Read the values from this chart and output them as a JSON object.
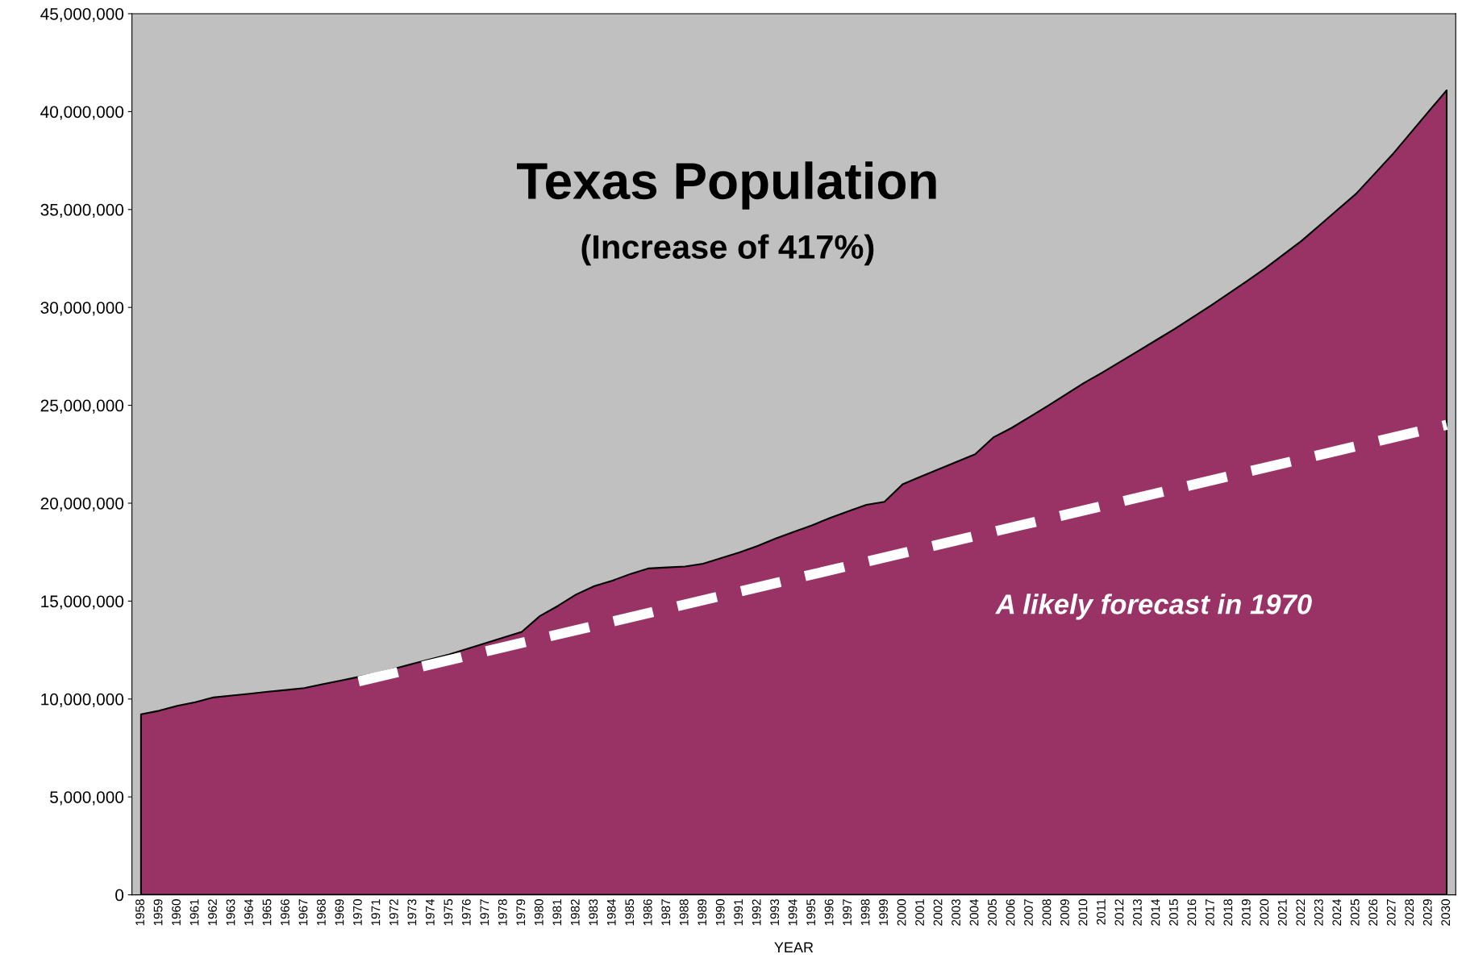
{
  "chart_data": {
    "type": "area",
    "title": "Texas Population",
    "subtitle": "(Increase of 417%)",
    "xlabel": "YEAR",
    "categories": [
      "1958",
      "1959",
      "1960",
      "1961",
      "1962",
      "1963",
      "1964",
      "1965",
      "1966",
      "1967",
      "1968",
      "1969",
      "1970",
      "1971",
      "1972",
      "1973",
      "1974",
      "1975",
      "1976",
      "1977",
      "1978",
      "1979",
      "1980",
      "1981",
      "1982",
      "1983",
      "1984",
      "1985",
      "1986",
      "1987",
      "1988",
      "1989",
      "1990",
      "1991",
      "1992",
      "1993",
      "1994",
      "1995",
      "1996",
      "1997",
      "1998",
      "1999",
      "2000",
      "2001",
      "2002",
      "2003",
      "2004",
      "2005",
      "2006",
      "2007",
      "2008",
      "2009",
      "2010",
      "2011",
      "2012",
      "2013",
      "2014",
      "2015",
      "2016",
      "2017",
      "2018",
      "2019",
      "2020",
      "2021",
      "2022",
      "2023",
      "2024",
      "2025",
      "2026",
      "2027",
      "2028",
      "2029",
      "2030"
    ],
    "series": [
      {
        "color": "#993366",
        "values": [
          9220000,
          9400000,
          9650000,
          9840000,
          10080000,
          10180000,
          10270000,
          10370000,
          10460000,
          10560000,
          10750000,
          10940000,
          11130000,
          11320000,
          11560000,
          11800000,
          12040000,
          12280000,
          12570000,
          12850000,
          13140000,
          13430000,
          14240000,
          14760000,
          15340000,
          15770000,
          16050000,
          16390000,
          16670000,
          16720000,
          16770000,
          16910000,
          17200000,
          17490000,
          17820000,
          18200000,
          18540000,
          18870000,
          19250000,
          19590000,
          19920000,
          20070000,
          20970000,
          21360000,
          21740000,
          22120000,
          22500000,
          23360000,
          23840000,
          24400000,
          24970000,
          25550000,
          26140000,
          26670000,
          27220000,
          27780000,
          28340000,
          28900000,
          29500000,
          30100000,
          30720000,
          31350000,
          32000000,
          32700000,
          33400000,
          34200000,
          35000000,
          35800000,
          36800000,
          37800000,
          38900000,
          40000000,
          41090000
        ]
      },
      {
        "type": "line",
        "color": "#ffffff",
        "line_style": "dashed",
        "values": [
          null,
          null,
          null,
          null,
          null,
          null,
          null,
          null,
          null,
          null,
          null,
          null,
          10900000,
          null,
          null,
          null,
          null,
          null,
          null,
          null,
          null,
          null,
          null,
          null,
          null,
          null,
          null,
          null,
          null,
          null,
          null,
          null,
          null,
          null,
          null,
          null,
          null,
          null,
          null,
          null,
          null,
          null,
          null,
          null,
          null,
          null,
          null,
          null,
          null,
          null,
          null,
          null,
          null,
          null,
          null,
          null,
          null,
          null,
          null,
          null,
          null,
          null,
          null,
          null,
          null,
          null,
          null,
          null,
          null,
          null,
          null,
          null,
          24000000
        ]
      }
    ],
    "annotations": [
      "A likely forecast in 1970"
    ],
    "ylim": [
      0,
      45000000
    ],
    "yticks": [
      {
        "value": 0,
        "label": "0"
      },
      {
        "value": 5000000,
        "label": "5,000,000"
      },
      {
        "value": 10000000,
        "label": "10,000,000"
      },
      {
        "value": 15000000,
        "label": "15,000,000"
      },
      {
        "value": 20000000,
        "label": "20,000,000"
      },
      {
        "value": 25000000,
        "label": "25,000,000"
      },
      {
        "value": 30000000,
        "label": "30,000,000"
      },
      {
        "value": 35000000,
        "label": "35,000,000"
      },
      {
        "value": 40000000,
        "label": "40,000,000"
      },
      {
        "value": 45000000,
        "label": "45,000,000"
      }
    ],
    "grid": false,
    "legend": false
  }
}
